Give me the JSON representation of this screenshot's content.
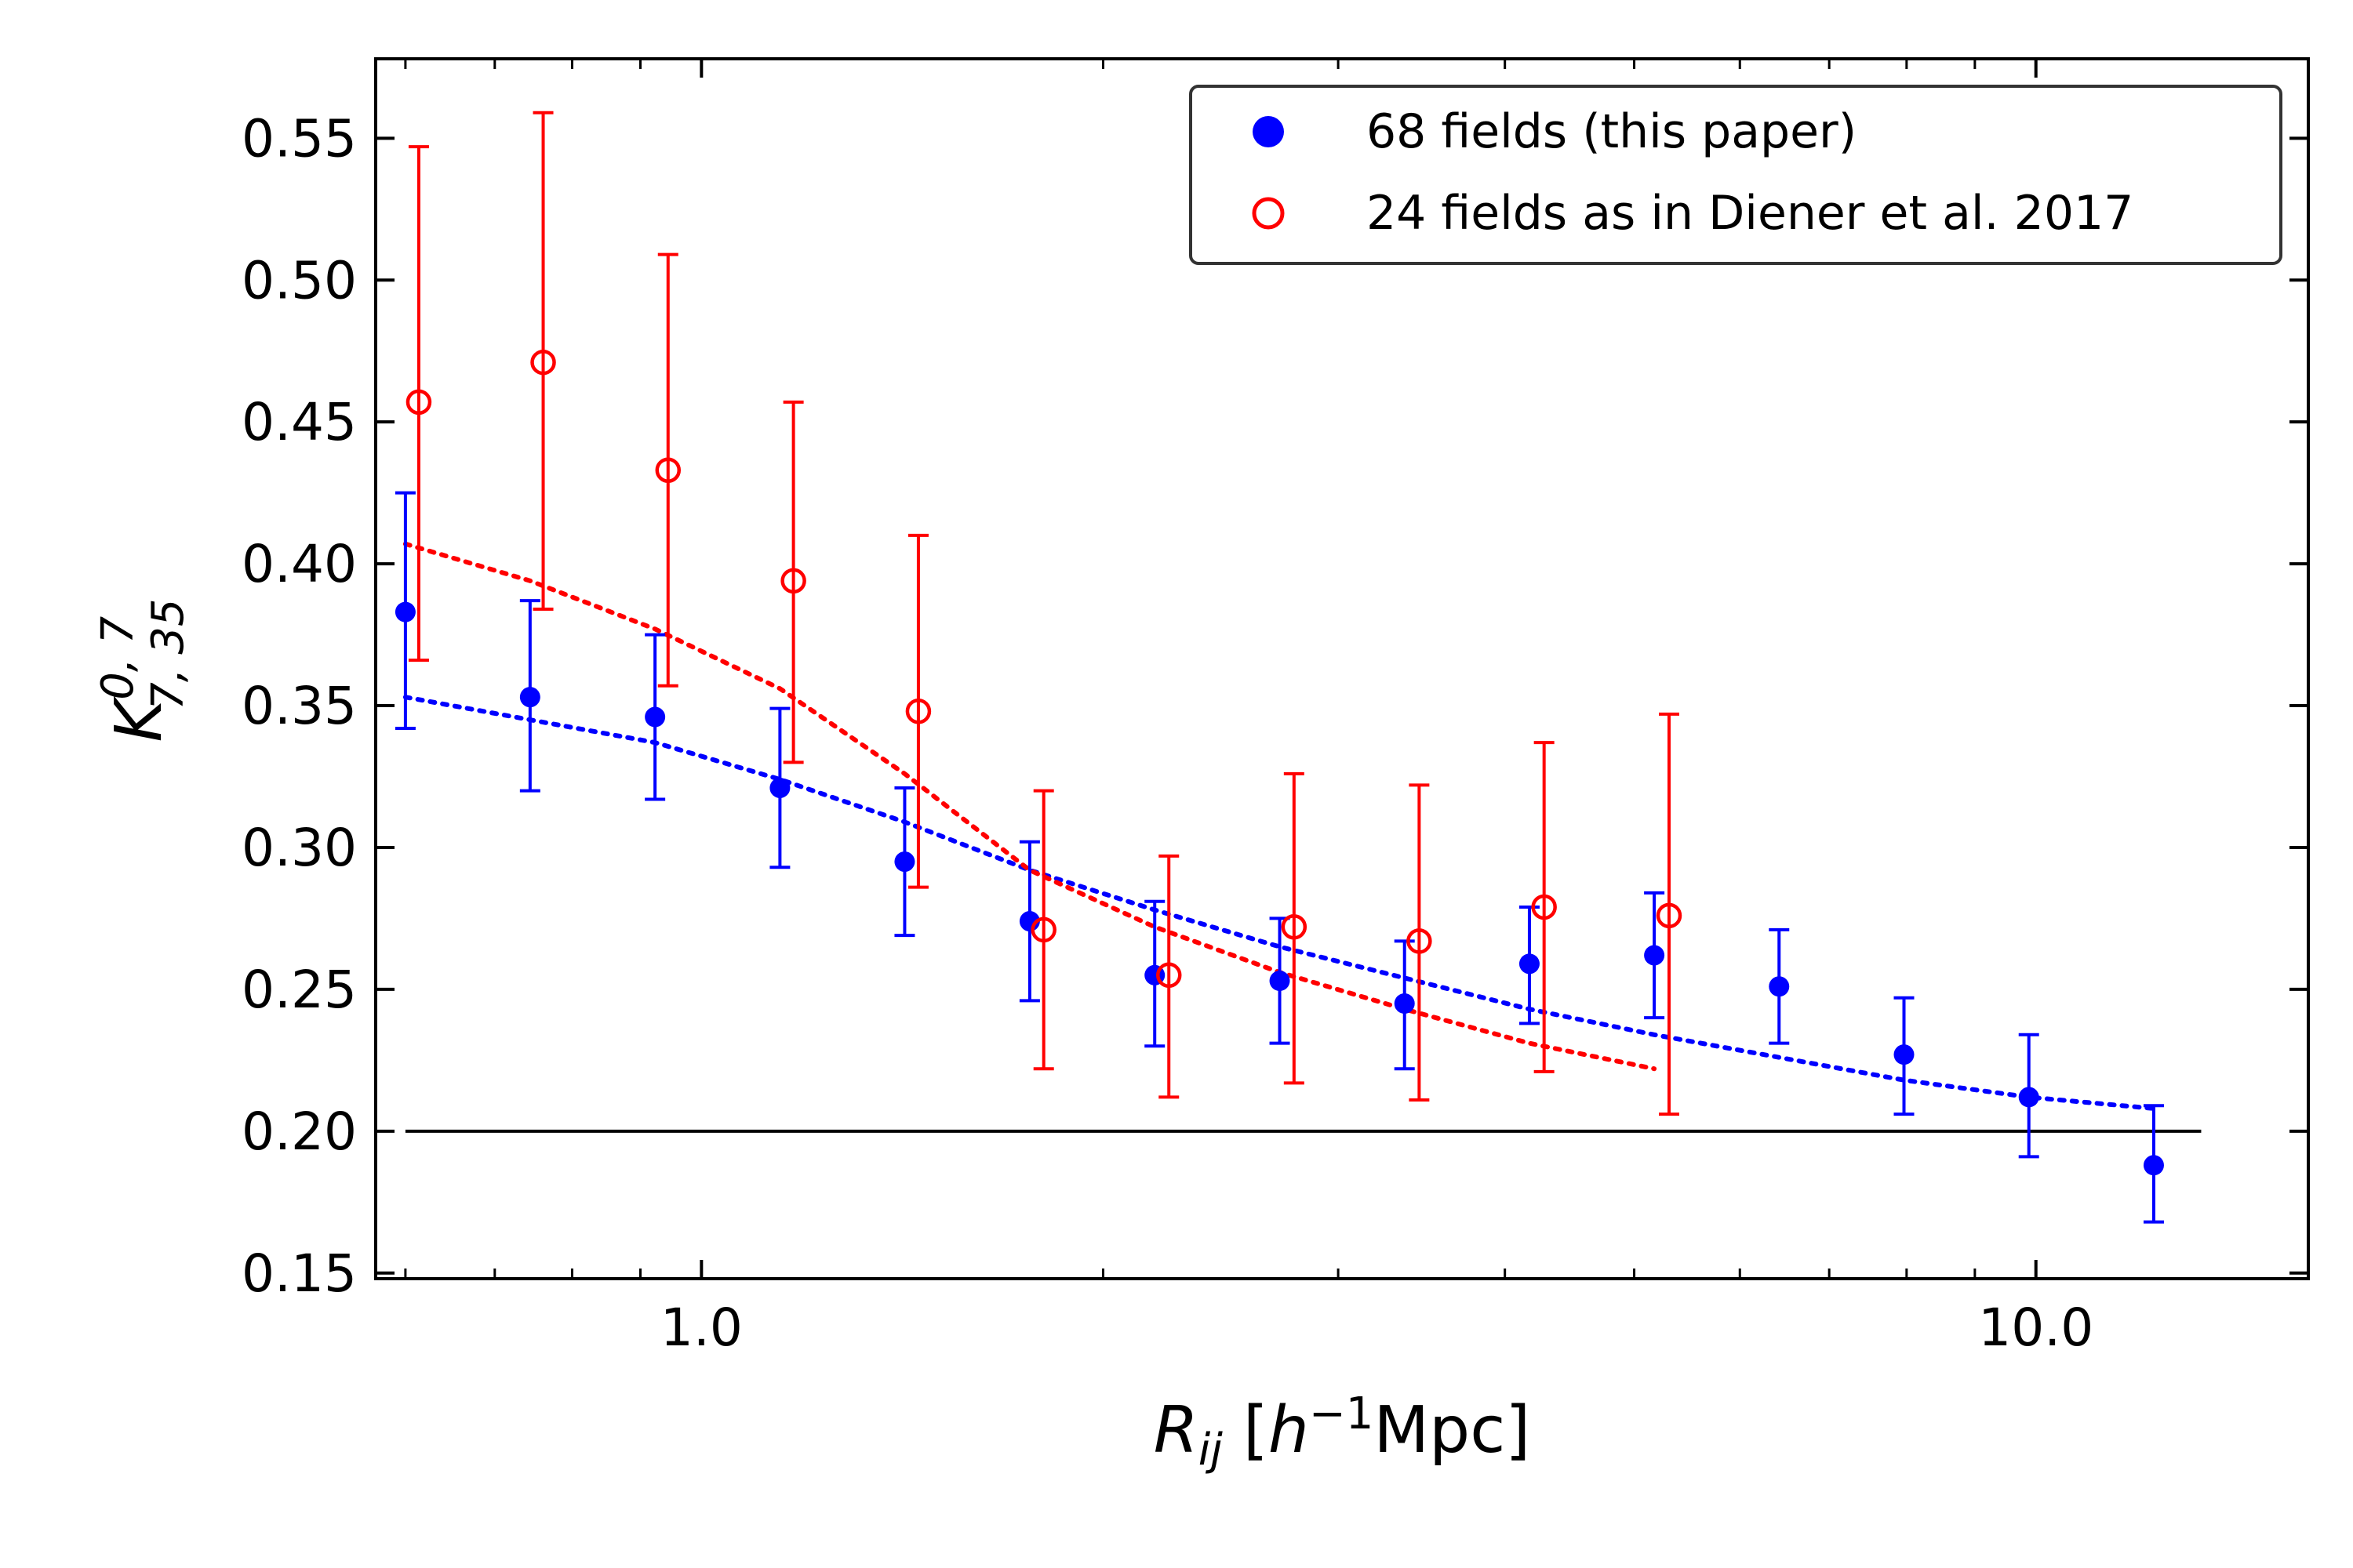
{
  "chart_data": {
    "type": "scatter",
    "xscale": "log",
    "xlim": [
      0.57,
      16.0
    ],
    "ylim": [
      0.148,
      0.578
    ],
    "xticks": [
      1.0,
      10.0
    ],
    "xtick_labels": [
      "1.0",
      "10.0"
    ],
    "yticks": [
      0.15,
      0.2,
      0.25,
      0.3,
      0.35,
      0.4,
      0.45,
      0.5,
      0.55
    ],
    "ytick_labels": [
      "0.15",
      "0.20",
      "0.25",
      "0.30",
      "0.35",
      "0.40",
      "0.45",
      "0.50",
      "0.55"
    ],
    "xlabel": {
      "main": "R",
      "sub": "ij",
      "unit_open": " [",
      "h": "h",
      "sup": "−1",
      "unit_rest": "Mpc]"
    },
    "ylabel": {
      "main": "K",
      "sup": "0, 7",
      "sub": "7, 35"
    },
    "baseline": {
      "y": 0.2,
      "x_from": 0.6,
      "x_to": 13.3,
      "color": "#000000"
    },
    "legend_position": "top-right",
    "series": [
      {
        "name": "68 fields (this paper)",
        "color": "#0000ff",
        "marker": "filled-circle",
        "x": [
          0.6,
          0.744,
          0.923,
          1.145,
          1.42,
          1.762,
          2.186,
          2.712,
          3.364,
          4.173,
          5.176,
          6.42,
          7.964,
          9.879,
          12.255
        ],
        "y": [
          0.383,
          0.353,
          0.346,
          0.321,
          0.295,
          0.274,
          0.255,
          0.253,
          0.245,
          0.259,
          0.262,
          0.251,
          0.227,
          0.212,
          0.188
        ],
        "err_low": [
          0.342,
          0.32,
          0.317,
          0.293,
          0.269,
          0.246,
          0.23,
          0.231,
          0.222,
          0.238,
          0.24,
          0.231,
          0.206,
          0.191,
          0.168
        ],
        "err_high": [
          0.425,
          0.387,
          0.375,
          0.349,
          0.321,
          0.302,
          0.281,
          0.275,
          0.267,
          0.279,
          0.284,
          0.271,
          0.247,
          0.234,
          0.209
        ]
      },
      {
        "name": "24 fields as in Diener et al. 2017",
        "color": "#ff0000",
        "marker": "open-circle",
        "x": [
          0.614,
          0.761,
          0.944,
          1.172,
          1.454,
          1.805,
          2.24,
          2.78,
          3.45,
          4.28,
          5.31
        ],
        "y": [
          0.457,
          0.471,
          0.433,
          0.394,
          0.348,
          0.271,
          0.255,
          0.272,
          0.267,
          0.279,
          0.276
        ],
        "err_low": [
          0.366,
          0.384,
          0.357,
          0.33,
          0.286,
          0.222,
          0.212,
          0.217,
          0.211,
          0.221,
          0.206
        ],
        "err_high": [
          0.547,
          0.559,
          0.509,
          0.457,
          0.41,
          0.32,
          0.297,
          0.326,
          0.322,
          0.337,
          0.347
        ]
      }
    ],
    "models": [
      {
        "name": "blue model (dotted)",
        "color": "#0000ff",
        "style": "dotted",
        "x": [
          0.6,
          0.744,
          0.923,
          1.145,
          1.42,
          1.762,
          2.186,
          2.712,
          3.364,
          4.173,
          5.176,
          6.42,
          7.964,
          9.879,
          12.255
        ],
        "y": [
          0.353,
          0.345,
          0.337,
          0.324,
          0.309,
          0.292,
          0.278,
          0.265,
          0.254,
          0.243,
          0.234,
          0.226,
          0.218,
          0.212,
          0.208
        ]
      },
      {
        "name": "red model (dotted)",
        "color": "#ff0000",
        "style": "dotted",
        "x": [
          0.6,
          0.744,
          0.923,
          1.145,
          1.42,
          1.762,
          2.186,
          2.712,
          3.364,
          4.173,
          5.176
        ],
        "y": [
          0.407,
          0.394,
          0.377,
          0.356,
          0.326,
          0.292,
          0.272,
          0.256,
          0.243,
          0.231,
          0.222
        ]
      }
    ]
  }
}
